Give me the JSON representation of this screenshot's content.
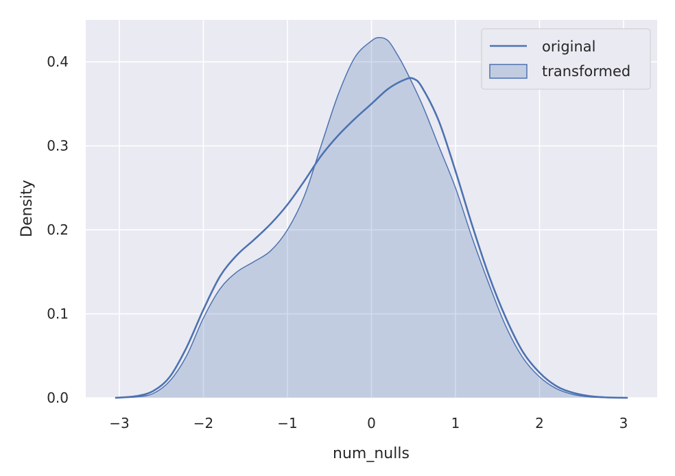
{
  "chart_data": {
    "type": "area",
    "xlabel": "num_nulls",
    "ylabel": "Density",
    "xlim": [
      -3.4,
      3.4
    ],
    "ylim": [
      0,
      0.45
    ],
    "xticks": [
      -3,
      -2,
      -1,
      0,
      1,
      2,
      3
    ],
    "xtick_labels": [
      "−3",
      "−2",
      "−1",
      "0",
      "1",
      "2",
      "3"
    ],
    "yticks": [
      0.0,
      0.1,
      0.2,
      0.3,
      0.4
    ],
    "ytick_labels": [
      "0.0",
      "0.1",
      "0.2",
      "0.3",
      "0.4"
    ],
    "grid": true,
    "legend_position": "top-right",
    "colors": {
      "background": "#eaeaf2",
      "grid": "#ffffff",
      "line": "#4c72b0",
      "fill": "#4c72b0",
      "fill_opacity": 0.25
    },
    "series": [
      {
        "name": "original",
        "style": "line",
        "x": [
          -3.05,
          -2.8,
          -2.6,
          -2.4,
          -2.2,
          -2.0,
          -1.8,
          -1.6,
          -1.4,
          -1.2,
          -1.0,
          -0.8,
          -0.6,
          -0.4,
          -0.2,
          0.0,
          0.2,
          0.4,
          0.5,
          0.6,
          0.8,
          1.0,
          1.2,
          1.4,
          1.6,
          1.8,
          2.0,
          2.2,
          2.4,
          2.6,
          2.8,
          3.05
        ],
        "y": [
          0.0,
          0.002,
          0.008,
          0.025,
          0.06,
          0.105,
          0.145,
          0.17,
          0.188,
          0.207,
          0.23,
          0.258,
          0.288,
          0.312,
          0.332,
          0.35,
          0.368,
          0.379,
          0.38,
          0.37,
          0.33,
          0.27,
          0.205,
          0.145,
          0.095,
          0.055,
          0.03,
          0.014,
          0.006,
          0.002,
          0.0005,
          0.0
        ]
      },
      {
        "name": "transformed",
        "style": "filled",
        "x": [
          -3.05,
          -2.8,
          -2.6,
          -2.4,
          -2.2,
          -2.0,
          -1.8,
          -1.6,
          -1.4,
          -1.2,
          -1.0,
          -0.8,
          -0.6,
          -0.4,
          -0.2,
          0.0,
          0.1,
          0.2,
          0.3,
          0.4,
          0.6,
          0.8,
          1.0,
          1.2,
          1.4,
          1.6,
          1.8,
          2.0,
          2.2,
          2.4,
          2.6,
          2.8,
          3.05
        ],
        "y": [
          0.0,
          0.001,
          0.005,
          0.02,
          0.05,
          0.095,
          0.13,
          0.15,
          0.162,
          0.175,
          0.2,
          0.24,
          0.3,
          0.36,
          0.405,
          0.425,
          0.429,
          0.425,
          0.41,
          0.392,
          0.35,
          0.3,
          0.25,
          0.19,
          0.135,
          0.085,
          0.048,
          0.025,
          0.011,
          0.004,
          0.001,
          0.0003,
          0.0
        ]
      }
    ]
  }
}
